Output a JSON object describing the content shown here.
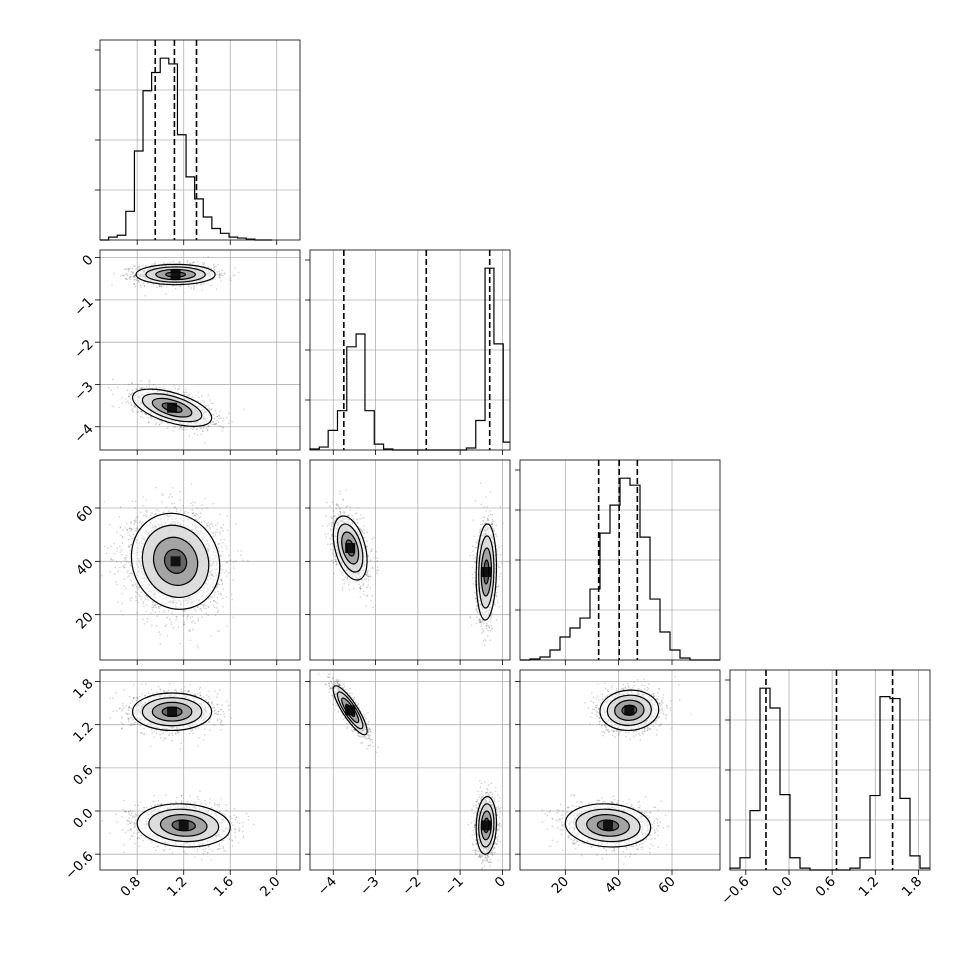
{
  "chart_data": {
    "type": "corner",
    "parameters": 4,
    "grid": true,
    "colors": {
      "line": "#000000",
      "grid": "#b0b0b0",
      "background": "#ffffff"
    },
    "axes_ranges": [
      [
        0.48,
        2.2
      ],
      [
        -4.55,
        0.18
      ],
      [
        3,
        78
      ],
      [
        -0.82,
        1.96
      ]
    ],
    "ticks": [
      {
        "values": [
          0.8,
          1.2,
          1.6,
          2.0
        ],
        "labels": [
          "0.8",
          "1.2",
          "1.6",
          "2.0"
        ]
      },
      {
        "values": [
          -4,
          -3,
          -2,
          -1,
          0
        ],
        "labels": [
          "−4",
          "−3",
          "−2",
          "−1",
          "0"
        ]
      },
      {
        "values": [
          20,
          40,
          60
        ],
        "labels": [
          "20",
          "40",
          "60"
        ]
      },
      {
        "values": [
          -0.6,
          0.0,
          0.6,
          1.2,
          1.8
        ],
        "labels": [
          "−0.6",
          "0.0",
          "0.6",
          "1.2",
          "1.8"
        ]
      }
    ],
    "marginals": [
      {
        "param": 0,
        "bins": [
          0.48,
          0.554,
          0.628,
          0.702,
          0.776,
          0.85,
          0.924,
          0.998,
          1.072,
          1.146,
          1.22,
          1.294,
          1.368,
          1.442,
          1.516,
          1.59,
          1.664,
          1.738,
          1.812,
          1.886,
          1.96
        ],
        "counts": [
          0,
          3,
          5,
          30,
          93,
          156,
          175,
          190,
          184,
          110,
          66,
          43,
          24,
          12,
          7,
          3,
          2,
          1,
          0,
          0
        ],
        "quantiles": [
          0.955,
          1.12,
          1.31
        ]
      },
      {
        "param": 1,
        "bins": [
          -4.55,
          -4.33,
          -4.12,
          -3.9,
          -3.68,
          -3.46,
          -3.25,
          -3.03,
          -2.81,
          -2.59,
          -2.38,
          -2.16,
          -1.94,
          -1.72,
          -1.5,
          -1.29,
          -1.07,
          -0.85,
          -0.63,
          -0.41,
          -0.2,
          0.02,
          0.18
        ],
        "counts": [
          1,
          3,
          20,
          40,
          105,
          118,
          40,
          6,
          1,
          0,
          0,
          0,
          0,
          0,
          0,
          0,
          0,
          2,
          30,
          185,
          108,
          8
        ],
        "quantiles": [
          -3.75,
          -1.8,
          -0.3
        ]
      },
      {
        "param": 2,
        "bins": [
          3,
          6.75,
          10.5,
          14.25,
          18,
          21.75,
          25.5,
          29.25,
          33,
          36.75,
          40.5,
          44.25,
          48,
          51.75,
          55.5,
          59.25,
          63,
          66.75,
          70.5,
          74.25,
          78
        ],
        "counts": [
          0,
          1,
          3,
          10,
          23,
          32,
          42,
          71,
          127,
          155,
          182,
          175,
          123,
          61,
          28,
          10,
          2,
          0,
          0,
          0
        ],
        "quantiles": [
          32.5,
          40.2,
          47.0
        ]
      },
      {
        "param": 3,
        "bins": [
          -0.82,
          -0.681,
          -0.542,
          -0.403,
          -0.264,
          -0.125,
          0.014,
          0.153,
          0.292,
          0.431,
          0.57,
          0.709,
          0.848,
          0.987,
          1.126,
          1.265,
          1.404,
          1.543,
          1.682,
          1.821,
          1.96
        ],
        "counts": [
          2,
          13,
          63,
          193,
          172,
          80,
          13,
          2,
          0,
          0,
          0,
          0,
          2,
          13,
          79,
          184,
          182,
          76,
          15,
          2
        ],
        "quantiles": [
          -0.32,
          0.66,
          1.44
        ]
      }
    ],
    "joints": [
      {
        "x": 0,
        "y": 1,
        "modes": [
          {
            "cx": 1.13,
            "cy": -0.4,
            "sx": 0.17,
            "sy": 0.12,
            "rho": 0.0,
            "n": 1500
          },
          {
            "cx": 1.1,
            "cy": -3.55,
            "sx": 0.17,
            "sy": 0.22,
            "rho": -0.55,
            "n": 1500
          }
        ]
      },
      {
        "x": 0,
        "y": 2,
        "modes": [
          {
            "cx": 1.13,
            "cy": 40,
            "sx": 0.19,
            "sy": 9,
            "rho": -0.1,
            "n": 3000
          }
        ]
      },
      {
        "x": 1,
        "y": 2,
        "modes": [
          {
            "cx": -3.6,
            "cy": 45,
            "sx": 0.2,
            "sy": 6,
            "rho": -0.4,
            "n": 1500
          },
          {
            "cx": -0.38,
            "cy": 36,
            "sx": 0.12,
            "sy": 9,
            "rho": 0.1,
            "n": 1500
          }
        ]
      },
      {
        "x": 0,
        "y": 3,
        "modes": [
          {
            "cx": 1.1,
            "cy": 1.38,
            "sx": 0.17,
            "sy": 0.13,
            "rho": 0.0,
            "n": 1500
          },
          {
            "cx": 1.2,
            "cy": -0.2,
            "sx": 0.2,
            "sy": 0.15,
            "rho": -0.1,
            "n": 1500
          }
        ]
      },
      {
        "x": 1,
        "y": 3,
        "modes": [
          {
            "cx": -3.6,
            "cy": 1.4,
            "sx": 0.2,
            "sy": 0.17,
            "rho": -0.85,
            "n": 1500
          },
          {
            "cx": -0.38,
            "cy": -0.2,
            "sx": 0.12,
            "sy": 0.2,
            "rho": 0.1,
            "n": 1500
          }
        ]
      },
      {
        "x": 2,
        "y": 3,
        "modes": [
          {
            "cx": 44,
            "cy": 1.4,
            "sx": 5.5,
            "sy": 0.14,
            "rho": 0.05,
            "n": 1500
          },
          {
            "cx": 36,
            "cy": -0.2,
            "sx": 8,
            "sy": 0.15,
            "rho": -0.1,
            "n": 1500
          }
        ]
      }
    ],
    "contour_levels_sigma": [
      0.5,
      1.0,
      1.5,
      2.0
    ]
  }
}
